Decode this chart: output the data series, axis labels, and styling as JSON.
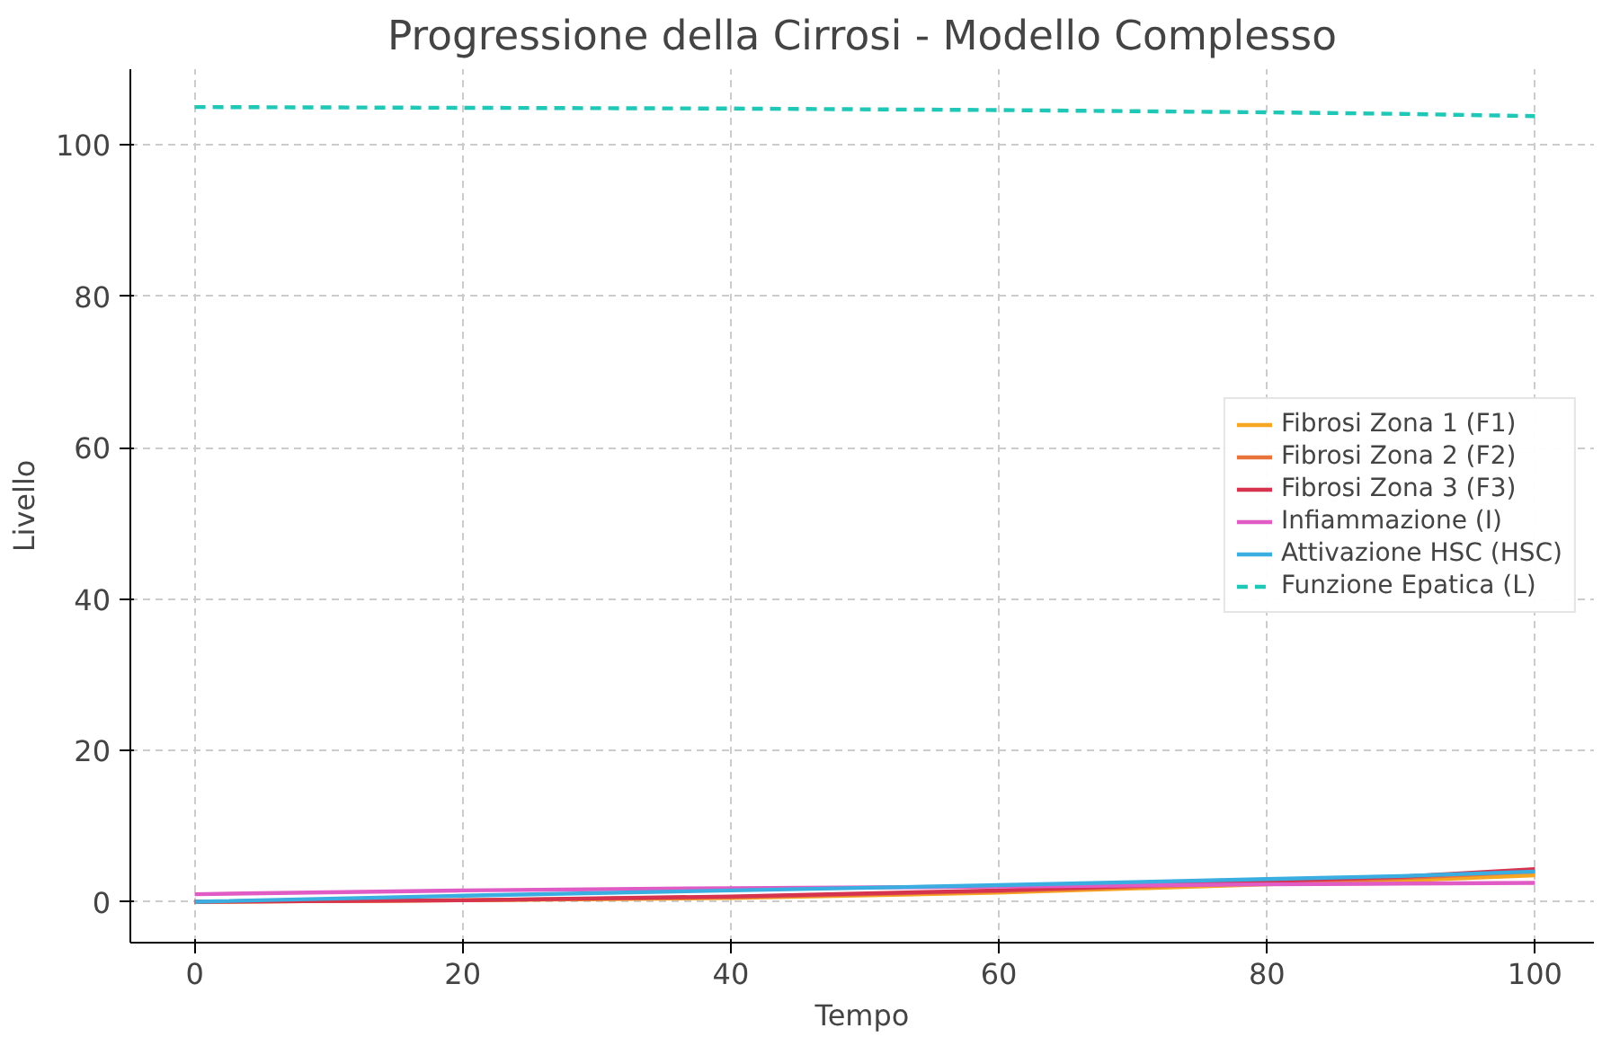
{
  "chart_data": {
    "type": "line",
    "title": "Progressione della Cirrosi - Modello Complesso",
    "xlabel": "Tempo",
    "ylabel": "Livello",
    "x": [
      0,
      20,
      40,
      60,
      80,
      90,
      100
    ],
    "series": [
      {
        "name": "Fibrosi Zona 1 (F1)",
        "color": "#f5a623",
        "values": [
          0,
          0.2,
          0.5,
          1.2,
          2.3,
          2.8,
          3.5
        ]
      },
      {
        "name": "Fibrosi Zona 2 (F2)",
        "color": "#e8743b",
        "values": [
          0,
          0.2,
          0.6,
          1.4,
          2.5,
          3.1,
          4.0
        ]
      },
      {
        "name": "Fibrosi Zona 3 (F3)",
        "color": "#d6334f",
        "values": [
          0,
          0.2,
          0.7,
          1.5,
          2.7,
          3.3,
          4.3
        ]
      },
      {
        "name": "Infiammazione (I)",
        "color": "#e05cc4",
        "values": [
          1.0,
          1.5,
          1.8,
          2.0,
          2.3,
          2.4,
          2.5
        ]
      },
      {
        "name": "Attivazione HSC (HSC)",
        "color": "#3aaee0",
        "values": [
          0,
          0.8,
          1.5,
          2.2,
          3.0,
          3.4,
          4.0
        ]
      },
      {
        "name": "Funzione Epatica (L)",
        "color": "#1fc7b6",
        "values": [
          105,
          104.9,
          104.8,
          104.6,
          104.3,
          104.1,
          103.8
        ],
        "line_style": "dashed"
      }
    ],
    "xlim": [
      -4.8,
      104.4
    ],
    "ylim": [
      -5.4,
      110
    ],
    "xticks": [
      0,
      20,
      40,
      60,
      80,
      100
    ],
    "yticks": [
      0,
      20,
      40,
      60,
      80,
      100
    ],
    "grid": true,
    "legend": "right",
    "line_style": "solid"
  }
}
